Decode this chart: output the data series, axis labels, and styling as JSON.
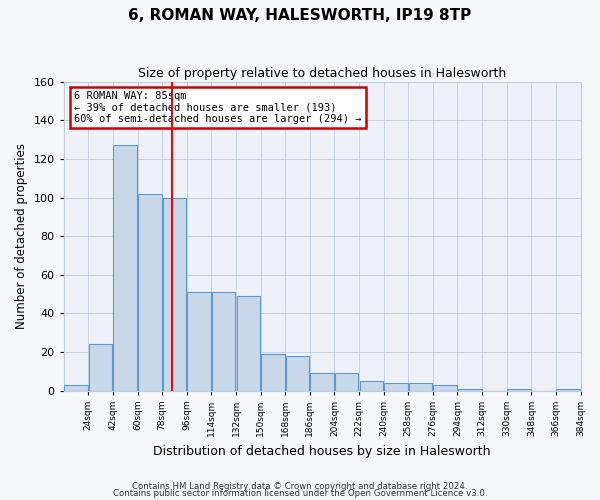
{
  "title": "6, ROMAN WAY, HALESWORTH, IP19 8TP",
  "subtitle": "Size of property relative to detached houses in Halesworth",
  "xlabel": "Distribution of detached houses by size in Halesworth",
  "ylabel": "Number of detached properties",
  "bin_edges": [
    6,
    24,
    42,
    60,
    78,
    96,
    114,
    132,
    150,
    168,
    186,
    204,
    222,
    240,
    258,
    276,
    294,
    312,
    330,
    348,
    366,
    384
  ],
  "bar_heights": [
    3,
    24,
    127,
    102,
    100,
    51,
    51,
    49,
    19,
    18,
    9,
    9,
    5,
    4,
    4,
    3,
    1,
    0,
    1,
    0,
    1
  ],
  "tick_labels": [
    "24sqm",
    "42sqm",
    "60sqm",
    "78sqm",
    "96sqm",
    "114sqm",
    "132sqm",
    "150sqm",
    "168sqm",
    "186sqm",
    "204sqm",
    "222sqm",
    "240sqm",
    "258sqm",
    "276sqm",
    "294sqm",
    "312sqm",
    "330sqm",
    "348sqm",
    "366sqm",
    "384sqm"
  ],
  "bar_color": "#c8d8e8",
  "bar_edge_color": "#5b9bd5",
  "grid_color": "#c0cce0",
  "background_color": "#eef2f8",
  "fig_background_color": "#f5f7fb",
  "red_line_x": 85,
  "annotation_box_text": "6 ROMAN WAY: 85sqm\n← 39% of detached houses are smaller (193)\n60% of semi-detached houses are larger (294) →",
  "annotation_box_color": "#ffffff",
  "annotation_box_edge_color": "#cc0000",
  "ylim": [
    0,
    160
  ],
  "yticks": [
    0,
    20,
    40,
    60,
    80,
    100,
    120,
    140,
    160
  ],
  "footer1": "Contains HM Land Registry data © Crown copyright and database right 2024.",
  "footer2": "Contains public sector information licensed under the Open Government Licence v3.0."
}
